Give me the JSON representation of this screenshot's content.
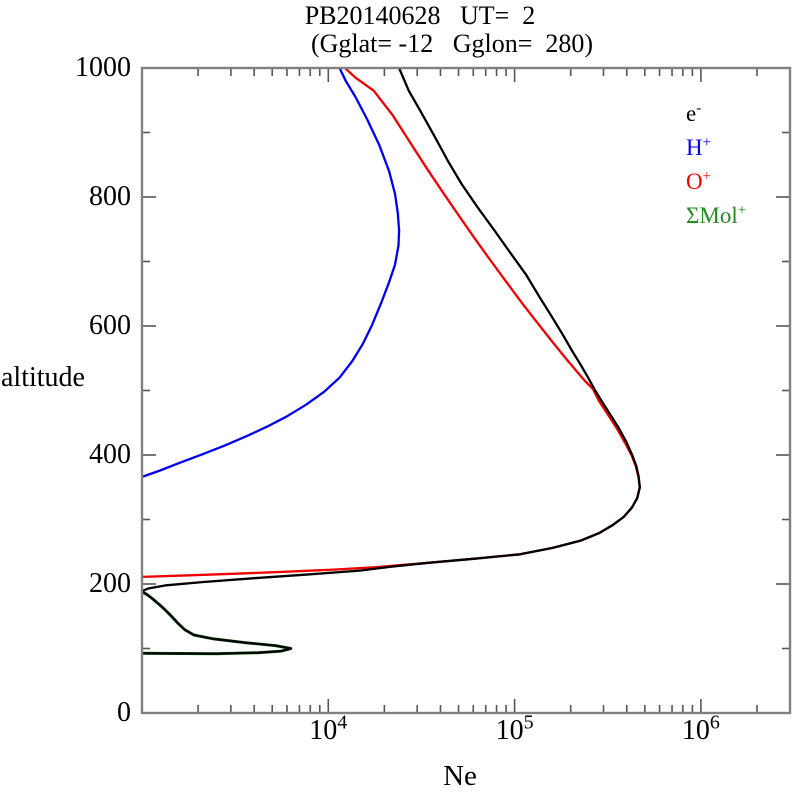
{
  "title": {
    "line1": "PB20140628   UT=  2",
    "line2": "(Gglat= -12   Gglon=  280)"
  },
  "axes": {
    "x": {
      "label": "Ne",
      "scale": "log",
      "min": 1000,
      "max": 3000000,
      "decades": [
        3,
        4,
        5,
        6
      ],
      "labeled_decades": [
        "4",
        "5",
        "6"
      ],
      "tick_base": "10"
    },
    "y": {
      "label": "altitude",
      "min": 0,
      "max": 1000,
      "major_step": 200,
      "minor_step": 100,
      "major_tick_labels": [
        "0",
        "200",
        "400",
        "600",
        "800",
        "1000"
      ]
    }
  },
  "legend": {
    "items": [
      {
        "id": "e",
        "base": "e",
        "sup": "-",
        "color": "#000000"
      },
      {
        "id": "h",
        "base": "H",
        "sup": "+",
        "color": "#0000ee"
      },
      {
        "id": "o",
        "base": "O",
        "sup": "+",
        "color": "#ee0000"
      },
      {
        "id": "mol",
        "base": "ΣMol",
        "sup": "+",
        "color": "#228b22"
      }
    ]
  },
  "chart_data": {
    "type": "line",
    "x_scale": "log",
    "xlabel": "Ne",
    "ylabel": "altitude",
    "x_range": [
      1000,
      3000000
    ],
    "y_range": [
      0,
      1000
    ],
    "grid": false,
    "legend_position": "inside-top-right",
    "point_format": "[Ne_cm-3, altitude_km]",
    "series": [
      {
        "id": "e",
        "name": "e-",
        "color": "#000000",
        "points": [
          [
            1000,
            92.5
          ],
          [
            2500,
            92
          ],
          [
            4200,
            93.5
          ],
          [
            5600,
            96
          ],
          [
            6300,
            100
          ],
          [
            5200,
            104.5
          ],
          [
            3600,
            109
          ],
          [
            2400,
            115
          ],
          [
            1900,
            121
          ],
          [
            1700,
            129
          ],
          [
            1560,
            139
          ],
          [
            1440,
            150
          ],
          [
            1330,
            160
          ],
          [
            1240,
            168
          ],
          [
            1140,
            177
          ],
          [
            1060,
            184
          ],
          [
            1000,
            189
          ],
          [
            1080,
            193
          ],
          [
            1350,
            198
          ],
          [
            2100,
            203
          ],
          [
            4000,
            209
          ],
          [
            8000,
            215
          ],
          [
            15000,
            221
          ],
          [
            22000,
            227
          ],
          [
            35000,
            233
          ],
          [
            60000,
            239
          ],
          [
            107000,
            246
          ],
          [
            160000,
            256
          ],
          [
            225000,
            267
          ],
          [
            285000,
            279
          ],
          [
            335000,
            291
          ],
          [
            385000,
            304
          ],
          [
            425000,
            318
          ],
          [
            455000,
            333
          ],
          [
            470000,
            350
          ],
          [
            463000,
            367
          ],
          [
            450000,
            383
          ],
          [
            428000,
            400
          ],
          [
            398000,
            420
          ],
          [
            362000,
            442
          ],
          [
            324000,
            464
          ],
          [
            290000,
            486
          ],
          [
            268000,
            502
          ],
          [
            248000,
            520
          ],
          [
            226000,
            540
          ],
          [
            203000,
            562
          ],
          [
            180000,
            588
          ],
          [
            158000,
            615
          ],
          [
            136000,
            645
          ],
          [
            115000,
            680
          ],
          [
            94000,
            715
          ],
          [
            78000,
            748
          ],
          [
            64000,
            782
          ],
          [
            52000,
            820
          ],
          [
            44000,
            855
          ],
          [
            37000,
            895
          ],
          [
            31000,
            935
          ],
          [
            27000,
            965
          ],
          [
            24000,
            1000
          ]
        ]
      },
      {
        "id": "h",
        "name": "H+",
        "color": "#0000ee",
        "points": [
          [
            1000,
            366
          ],
          [
            1250,
            376
          ],
          [
            1600,
            388
          ],
          [
            2100,
            401
          ],
          [
            2800,
            415
          ],
          [
            3700,
            430
          ],
          [
            4700,
            444
          ],
          [
            6000,
            460
          ],
          [
            7600,
            478
          ],
          [
            9500,
            498
          ],
          [
            11500,
            520
          ],
          [
            13400,
            545
          ],
          [
            15300,
            572
          ],
          [
            17200,
            602
          ],
          [
            19300,
            637
          ],
          [
            21200,
            668
          ],
          [
            22800,
            695
          ],
          [
            23800,
            725
          ],
          [
            24000,
            748
          ],
          [
            23600,
            775
          ],
          [
            22800,
            805
          ],
          [
            21200,
            840
          ],
          [
            18800,
            880
          ],
          [
            16200,
            920
          ],
          [
            14000,
            955
          ],
          [
            12400,
            980
          ],
          [
            11500,
            1000
          ]
        ]
      },
      {
        "id": "o",
        "name": "O+",
        "color": "#ee0000",
        "points": [
          [
            1000,
            211
          ],
          [
            1800,
            213.5
          ],
          [
            3200,
            216
          ],
          [
            6000,
            219
          ],
          [
            11000,
            222.5
          ],
          [
            18000,
            226
          ],
          [
            26000,
            230
          ],
          [
            35000,
            233
          ],
          [
            60000,
            239
          ],
          [
            107000,
            246
          ],
          [
            160000,
            256
          ],
          [
            225000,
            267
          ],
          [
            285000,
            279
          ],
          [
            335000,
            291
          ],
          [
            385000,
            304
          ],
          [
            425000,
            318
          ],
          [
            455000,
            333
          ],
          [
            470000,
            350
          ],
          [
            462000,
            366
          ],
          [
            448000,
            382
          ],
          [
            425000,
            399
          ],
          [
            393000,
            418
          ],
          [
            356000,
            440
          ],
          [
            318000,
            462
          ],
          [
            283000,
            484
          ],
          [
            264000,
            502
          ],
          [
            238000,
            515
          ],
          [
            215000,
            530
          ],
          [
            188000,
            550
          ],
          [
            160000,
            575
          ],
          [
            135000,
            602
          ],
          [
            112000,
            632
          ],
          [
            92000,
            665
          ],
          [
            75000,
            700
          ],
          [
            61000,
            736
          ],
          [
            50000,
            772
          ],
          [
            41000,
            808
          ],
          [
            33500,
            846
          ],
          [
            27000,
            888
          ],
          [
            22000,
            928
          ],
          [
            17500,
            965
          ],
          [
            14000,
            985
          ],
          [
            12300,
            1000
          ]
        ]
      },
      {
        "id": "mol",
        "name": "ΣMol+",
        "color": "#228b22",
        "points": [
          [
            1000,
            92.5
          ],
          [
            2500,
            92
          ],
          [
            4200,
            93.5
          ],
          [
            5600,
            96
          ],
          [
            6300,
            100
          ],
          [
            5200,
            104.5
          ],
          [
            3600,
            109
          ],
          [
            2400,
            115
          ],
          [
            1900,
            121
          ],
          [
            1700,
            129
          ],
          [
            1560,
            139
          ],
          [
            1440,
            150
          ],
          [
            1330,
            160
          ],
          [
            1240,
            168
          ],
          [
            1140,
            177
          ],
          [
            1060,
            184
          ],
          [
            1000,
            187
          ]
        ]
      }
    ]
  }
}
